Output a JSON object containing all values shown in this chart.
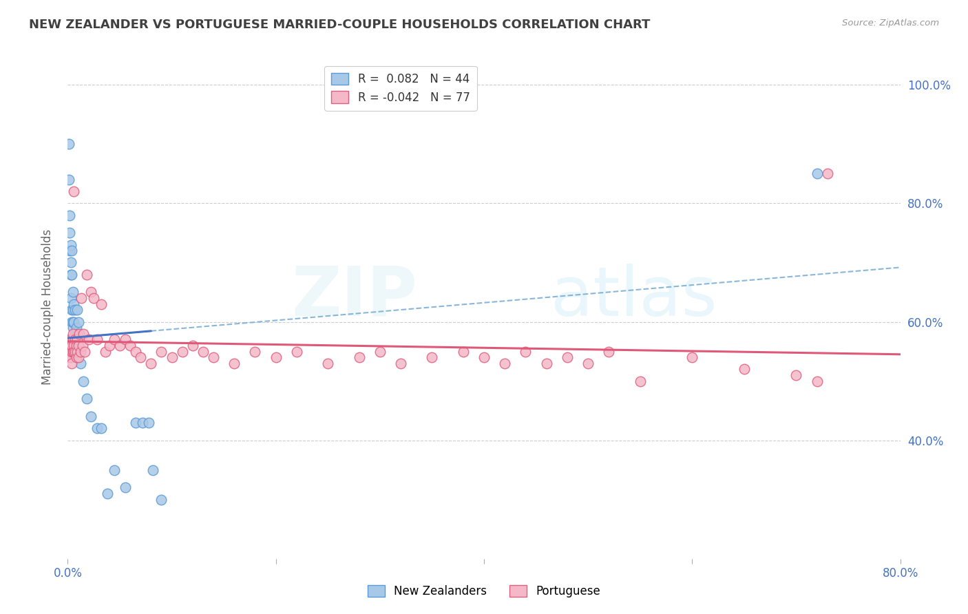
{
  "title": "NEW ZEALANDER VS PORTUGUESE MARRIED-COUPLE HOUSEHOLDS CORRELATION CHART",
  "source": "Source: ZipAtlas.com",
  "ylabel": "Married-couple Households",
  "legend_labels": [
    "New Zealanders",
    "Portuguese"
  ],
  "R_nz": 0.082,
  "N_nz": 44,
  "R_pt": -0.042,
  "N_pt": 77,
  "color_nz": "#a8c8e8",
  "color_nz_edge": "#5b9bd5",
  "color_nz_line": "#4472c4",
  "color_pt": "#f4b8c8",
  "color_pt_edge": "#e06080",
  "color_pt_line": "#e05878",
  "color_dashed": "#7bafd4",
  "background": "#ffffff",
  "grid_color": "#cccccc",
  "title_color": "#404040",
  "tick_color": "#4472c4",
  "xlim": [
    0.0,
    0.08
  ],
  "ylim": [
    0.2,
    1.05
  ],
  "x_ticks": [
    0.0,
    0.02,
    0.04,
    0.06,
    0.08
  ],
  "x_tick_labels": [
    "0.0%",
    "",
    "",
    "",
    ""
  ],
  "y_ticks": [
    0.4,
    0.6,
    0.8,
    1.0
  ],
  "y_tick_labels": [
    "40.0%",
    "60.0%",
    "80.0%",
    "100.0%"
  ],
  "nz_x": [
    0.0008,
    0.001,
    0.0012,
    0.0015,
    0.0015,
    0.0018,
    0.002,
    0.002,
    0.0022,
    0.0025,
    0.0025,
    0.003,
    0.003,
    0.003,
    0.003,
    0.0035,
    0.0038,
    0.004,
    0.004,
    0.004,
    0.0042,
    0.0045,
    0.005,
    0.005,
    0.005,
    0.0055,
    0.006,
    0.006,
    0.0065,
    0.007,
    0.0075,
    0.008,
    0.009,
    0.01,
    0.011,
    0.012,
    0.013,
    0.015,
    0.018,
    0.02,
    0.022,
    0.025,
    0.028,
    0.072
  ],
  "nz_y": [
    0.9,
    0.84,
    0.78,
    0.75,
    0.7,
    0.73,
    0.68,
    0.72,
    0.65,
    0.64,
    0.68,
    0.7,
    0.65,
    0.62,
    0.6,
    0.62,
    0.65,
    0.6,
    0.62,
    0.58,
    0.6,
    0.63,
    0.58,
    0.61,
    0.56,
    0.59,
    0.6,
    0.57,
    0.55,
    0.58,
    0.53,
    0.55,
    0.5,
    0.47,
    0.44,
    0.47,
    0.5,
    0.43,
    0.42,
    0.42,
    0.31,
    0.35,
    0.32,
    0.85
  ],
  "pt_x": [
    0.0008,
    0.001,
    0.0015,
    0.002,
    0.002,
    0.0022,
    0.0025,
    0.003,
    0.003,
    0.003,
    0.003,
    0.004,
    0.004,
    0.004,
    0.0045,
    0.005,
    0.005,
    0.005,
    0.006,
    0.006,
    0.006,
    0.007,
    0.007,
    0.008,
    0.008,
    0.009,
    0.009,
    0.01,
    0.01,
    0.011,
    0.011,
    0.012,
    0.012,
    0.013,
    0.014,
    0.015,
    0.015,
    0.016,
    0.017,
    0.018,
    0.019,
    0.02,
    0.021,
    0.022,
    0.023,
    0.024,
    0.025,
    0.026,
    0.027,
    0.028,
    0.03,
    0.031,
    0.032,
    0.033,
    0.035,
    0.037,
    0.038,
    0.04,
    0.042,
    0.045,
    0.048,
    0.05,
    0.052,
    0.055,
    0.058,
    0.06,
    0.062,
    0.065,
    0.067,
    0.07,
    0.072,
    0.074,
    0.075,
    0.076,
    0.077,
    0.078,
    0.079
  ],
  "pt_y": [
    0.56,
    0.54,
    0.55,
    0.57,
    0.54,
    0.56,
    0.53,
    0.55,
    0.56,
    0.54,
    0.58,
    0.55,
    0.53,
    0.56,
    0.57,
    0.54,
    0.56,
    0.58,
    0.56,
    0.82,
    0.55,
    0.55,
    0.57,
    0.54,
    0.56,
    0.55,
    0.57,
    0.54,
    0.56,
    0.56,
    0.58,
    0.54,
    0.57,
    0.56,
    0.64,
    0.56,
    0.58,
    0.55,
    0.57,
    0.68,
    0.55,
    0.57,
    0.56,
    0.65,
    0.64,
    0.57,
    0.63,
    0.55,
    0.56,
    0.57,
    0.56,
    0.57,
    0.56,
    0.55,
    0.54,
    0.53,
    0.55,
    0.54,
    0.55,
    0.56,
    0.55,
    0.54,
    0.53,
    0.55,
    0.53,
    0.54,
    0.55,
    0.53,
    0.54,
    0.53,
    0.55,
    0.5,
    0.54,
    0.52,
    0.51,
    0.5,
    0.85
  ]
}
